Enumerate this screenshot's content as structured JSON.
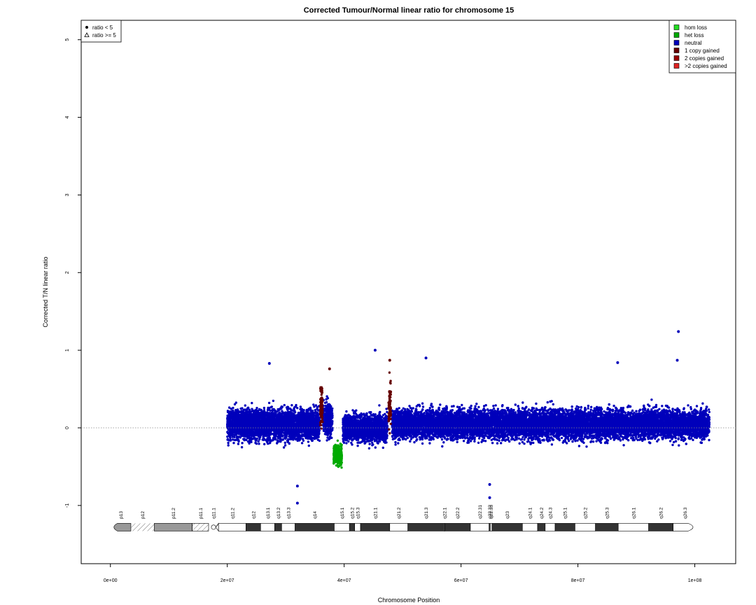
{
  "chart_data": {
    "type": "scatter",
    "title": "Corrected Tumour/Normal linear ratio for chromosome  15",
    "xlabel": "Chromosome Position",
    "ylabel": "Corrected T/N linear ratio",
    "xlim": [
      -5000000,
      107000000
    ],
    "ylim": [
      -1.75,
      5.25
    ],
    "x_ticks": [
      0,
      20000000,
      40000000,
      60000000,
      80000000,
      100000000
    ],
    "x_tick_labels": [
      "0e+00",
      "2e+07",
      "4e+07",
      "6e+07",
      "8e+07",
      "1e+08"
    ],
    "y_ticks": [
      -1,
      0,
      1,
      2,
      3,
      4,
      5
    ],
    "y_tick_labels": [
      "-1",
      "0",
      "1",
      "2",
      "3",
      "4",
      "5"
    ],
    "reference_line": 0,
    "shape_legend": {
      "placement": "top-left",
      "items": [
        {
          "label": "ratio < 5",
          "symbol": "filled-circle"
        },
        {
          "label": "ratio >= 5",
          "symbol": "open-triangle"
        }
      ]
    },
    "legend": {
      "placement": "top-right",
      "items": [
        {
          "label": "hom loss",
          "color": "#22dd22"
        },
        {
          "label": "het loss",
          "color": "#00aa00"
        },
        {
          "label": "neutral",
          "color": "#0000bb"
        },
        {
          "label": "1 copy gained",
          "color": "#660000"
        },
        {
          "label": "2 copies gained",
          "color": "#990000"
        },
        {
          "label": ">2 copies gained",
          "color": "#dd2222"
        }
      ]
    },
    "series": [
      {
        "status": "neutral",
        "color": "#0000bb",
        "segments": [
          {
            "x_start": 20000000,
            "x_end": 35800000,
            "mean": 0.05,
            "spread": 0.28
          },
          {
            "x_start": 36400000,
            "x_end": 38000000,
            "mean": 0.1,
            "spread": 0.3
          },
          {
            "x_start": 39800000,
            "x_end": 47400000,
            "mean": 0.0,
            "spread": 0.25
          },
          {
            "x_start": 48200000,
            "x_end": 102500000,
            "mean": 0.05,
            "spread": 0.27
          }
        ],
        "outliers": [
          {
            "x": 32000000,
            "y": -0.97
          },
          {
            "x": 32000000,
            "y": -0.75
          },
          {
            "x": 45300000,
            "y": 1.0
          },
          {
            "x": 54000000,
            "y": 0.9
          },
          {
            "x": 64900000,
            "y": -0.9
          },
          {
            "x": 64900000,
            "y": -0.73
          },
          {
            "x": 97200000,
            "y": 1.24
          },
          {
            "x": 97000000,
            "y": 0.87
          },
          {
            "x": 86800000,
            "y": 0.84
          },
          {
            "x": 27200000,
            "y": 0.83
          }
        ]
      },
      {
        "status": "het loss",
        "color": "#00aa00",
        "segments": [
          {
            "x_start": 38200000,
            "x_end": 39600000,
            "mean": -0.35,
            "spread": 0.18
          }
        ]
      },
      {
        "status": "1 copy gained",
        "color": "#660000",
        "segments": [
          {
            "x_start": 35900000,
            "x_end": 36300000,
            "mean": 0.3,
            "spread": 0.4
          },
          {
            "x_start": 47600000,
            "x_end": 48000000,
            "mean": 0.3,
            "spread": 0.45
          }
        ],
        "outliers": [
          {
            "x": 37500000,
            "y": 0.76
          },
          {
            "x": 47800000,
            "y": 0.87
          }
        ]
      }
    ],
    "ideogram": {
      "y": -1.28,
      "bands": [
        {
          "name": "p13",
          "start": 0,
          "end": 3500000,
          "stain": "gvar",
          "label": "p13"
        },
        {
          "name": "p12",
          "start": 3500000,
          "end": 7500000,
          "stain": "stalk",
          "label": "p12"
        },
        {
          "name": "p11.2",
          "start": 7500000,
          "end": 14000000,
          "stain": "gvar",
          "label": "p11.2"
        },
        {
          "name": "p11.1",
          "start": 14000000,
          "end": 16800000,
          "stain": "stalk-hatch",
          "label": "p11.1"
        },
        {
          "name": "q11.1",
          "start": 16800000,
          "end": 18500000,
          "stain": "acen",
          "label": "q11.1"
        },
        {
          "name": "q11.2",
          "start": 18500000,
          "end": 23200000,
          "stain": "gneg",
          "label": "q11.2"
        },
        {
          "name": "q12",
          "start": 23200000,
          "end": 25700000,
          "stain": "gpos",
          "label": "q12"
        },
        {
          "name": "q13.1",
          "start": 25700000,
          "end": 28100000,
          "stain": "gneg",
          "label": "q13.1"
        },
        {
          "name": "q13.2",
          "start": 28100000,
          "end": 29300000,
          "stain": "gpos",
          "label": "q13.2"
        },
        {
          "name": "q13.3",
          "start": 29300000,
          "end": 31600000,
          "stain": "gneg",
          "label": "q13.3"
        },
        {
          "name": "q14",
          "start": 31600000,
          "end": 38300000,
          "stain": "gpos",
          "label": "q14"
        },
        {
          "name": "q15.1",
          "start": 38300000,
          "end": 40900000,
          "stain": "gneg",
          "label": "q15.1"
        },
        {
          "name": "q15.2",
          "start": 40900000,
          "end": 41800000,
          "stain": "gpos",
          "label": "q15.2"
        },
        {
          "name": "q15.3",
          "start": 41800000,
          "end": 42800000,
          "stain": "gneg",
          "label": "q15.3"
        },
        {
          "name": "q21.1",
          "start": 42800000,
          "end": 47800000,
          "stain": "gpos",
          "label": "q21.1"
        },
        {
          "name": "q21.2",
          "start": 47800000,
          "end": 50900000,
          "stain": "gneg",
          "label": "q21.2"
        },
        {
          "name": "q21.3",
          "start": 50900000,
          "end": 57100000,
          "stain": "gpos",
          "label": "q21.3"
        },
        {
          "name": "q22.1",
          "start": 57100000,
          "end": 57200000,
          "stain": "gneg",
          "label": "q22.1"
        },
        {
          "name": "q22.2",
          "start": 57200000,
          "end": 61600000,
          "stain": "gpos",
          "label": "q22.2"
        },
        {
          "name": "q22.31",
          "start": 61600000,
          "end": 64800000,
          "stain": "gneg",
          "label": "q22.31"
        },
        {
          "name": "q22.32",
          "start": 64800000,
          "end": 65000000,
          "stain": "gpos",
          "label": "q22.32"
        },
        {
          "name": "q22.33",
          "start": 65000000,
          "end": 65300000,
          "stain": "gneg",
          "label": "q22.33"
        },
        {
          "name": "q23",
          "start": 65300000,
          "end": 70500000,
          "stain": "gpos",
          "label": "q23"
        },
        {
          "name": "q24.1",
          "start": 70500000,
          "end": 73100000,
          "stain": "gneg",
          "label": "q24.1"
        },
        {
          "name": "q24.2",
          "start": 73100000,
          "end": 74400000,
          "stain": "gpos",
          "label": "q24.2"
        },
        {
          "name": "q24.3",
          "start": 74400000,
          "end": 76100000,
          "stain": "gneg",
          "label": "q24.3"
        },
        {
          "name": "q25.1",
          "start": 76100000,
          "end": 79500000,
          "stain": "gpos",
          "label": "q25.1"
        },
        {
          "name": "q25.2",
          "start": 79500000,
          "end": 83000000,
          "stain": "gneg",
          "label": "q25.2"
        },
        {
          "name": "q25.3",
          "start": 83000000,
          "end": 86900000,
          "stain": "gpos",
          "label": "q25.3"
        },
        {
          "name": "q26.1",
          "start": 86900000,
          "end": 92100000,
          "stain": "gneg",
          "label": "q26.1"
        },
        {
          "name": "q26.2",
          "start": 92100000,
          "end": 96300000,
          "stain": "gpos",
          "label": "q26.2"
        },
        {
          "name": "q26.3",
          "start": 96300000,
          "end": 100300000,
          "stain": "gneg",
          "label": "q26.3"
        }
      ]
    }
  }
}
